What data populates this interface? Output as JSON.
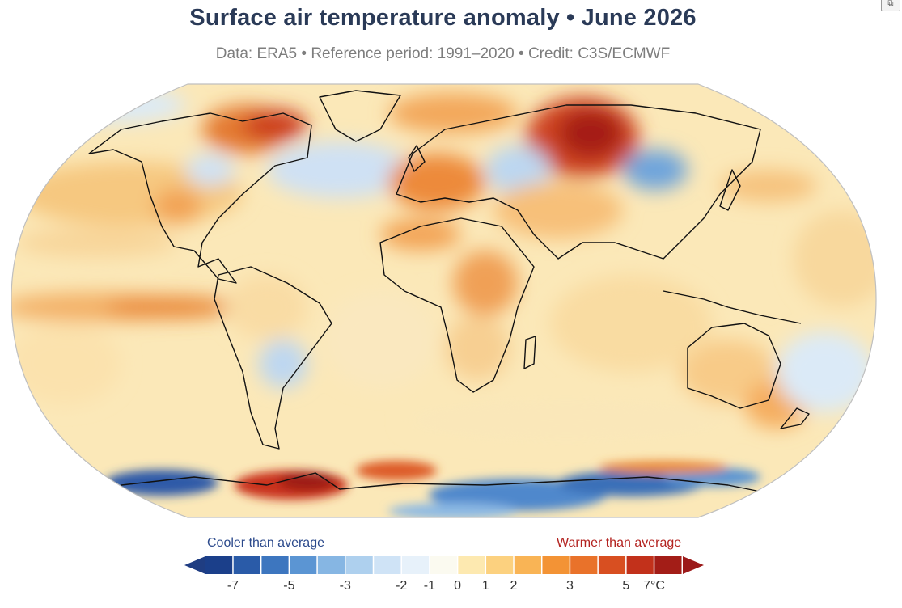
{
  "title": "Surface air temperature anomaly • June 2026",
  "subtitle": "Data: ERA5 • Reference period: 1991–2020 • Credit: C3S/ECMWF",
  "legend": {
    "cooler_label": "Cooler than average",
    "warmer_label": "Warmer than average",
    "tick_labels": [
      "-7",
      "-5",
      "-3",
      "-2",
      "-1",
      "0",
      "1",
      "2",
      "3",
      "5",
      "7°C"
    ],
    "bins": [
      "#1b3f8a",
      "#2a5ba8",
      "#3d76bf",
      "#5b95d3",
      "#86b6e3",
      "#aed0ee",
      "#cfe3f6",
      "#e7f1fa",
      "#fbfaf0",
      "#fde9b0",
      "#fcd17f",
      "#f9b455",
      "#f39335",
      "#e9722a",
      "#d84f21",
      "#c2311b",
      "#a31d17"
    ],
    "cold_arrow_color": "#1f3d82",
    "warm_arrow_color": "#9c1a1a"
  },
  "map": {
    "projection": "Robinson",
    "colors": {
      "ocean_base": "#fbe8b8",
      "coast": "#111111",
      "border": "#bfbfbf"
    },
    "anomaly_regions": [
      {
        "name": "Siberia",
        "level": 6
      },
      {
        "name": "Western Europe",
        "level": 4
      },
      {
        "name": "Canadian Arctic",
        "level": 5
      },
      {
        "name": "Antarctic Peninsula",
        "level": 6
      },
      {
        "name": "East Antarctica",
        "level": -4
      },
      {
        "name": "West Antarctica coast",
        "level": -5
      },
      {
        "name": "Central Asia",
        "level": -2
      },
      {
        "name": "North Atlantic",
        "level": -1
      },
      {
        "name": "Equatorial Eastern Pacific",
        "level": 3
      },
      {
        "name": "Central Africa",
        "level": 3
      },
      {
        "name": "Southern South America",
        "level": -2
      }
    ]
  }
}
